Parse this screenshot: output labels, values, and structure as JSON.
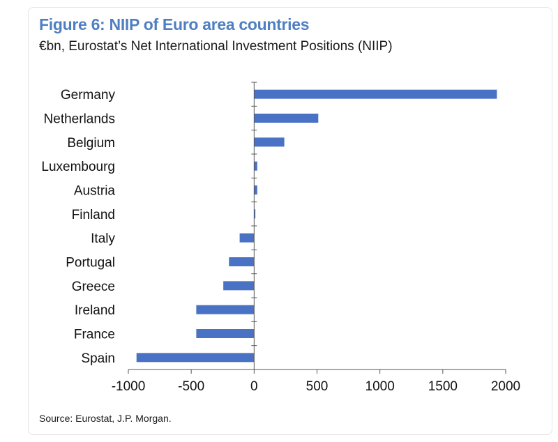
{
  "header": {
    "title": "Figure 6: NIIP of Euro area countries",
    "subtitle": "€bn, Eurostat’s Net International Investment Positions (NIIP)"
  },
  "footer": {
    "source": "Source: Eurostat, J.P. Morgan."
  },
  "colors": {
    "bar": "#4a72c4",
    "title": "#4f7fc2"
  },
  "chart_data": {
    "type": "bar",
    "orientation": "horizontal",
    "title": "Figure 6: NIIP of Euro area countries",
    "subtitle": "€bn, Eurostat’s Net International Investment Positions (NIIP)",
    "categories": [
      "Germany",
      "Netherlands",
      "Belgium",
      "Luxembourg",
      "Austria",
      "Finland",
      "Italy",
      "Portugal",
      "Greece",
      "Ireland",
      "France",
      "Spain"
    ],
    "values": [
      1930,
      510,
      240,
      25,
      25,
      10,
      -115,
      -200,
      -245,
      -460,
      -460,
      -935
    ],
    "xlim": [
      -1000,
      2000
    ],
    "xticks": [
      "-1000",
      "-500",
      "0",
      "500",
      "1000",
      "1500",
      "2000"
    ],
    "xtick_values": [
      -1000,
      -500,
      0,
      500,
      1000,
      1500,
      2000
    ],
    "xlabel": "",
    "ylabel": "",
    "grid": false,
    "legend": "none"
  }
}
